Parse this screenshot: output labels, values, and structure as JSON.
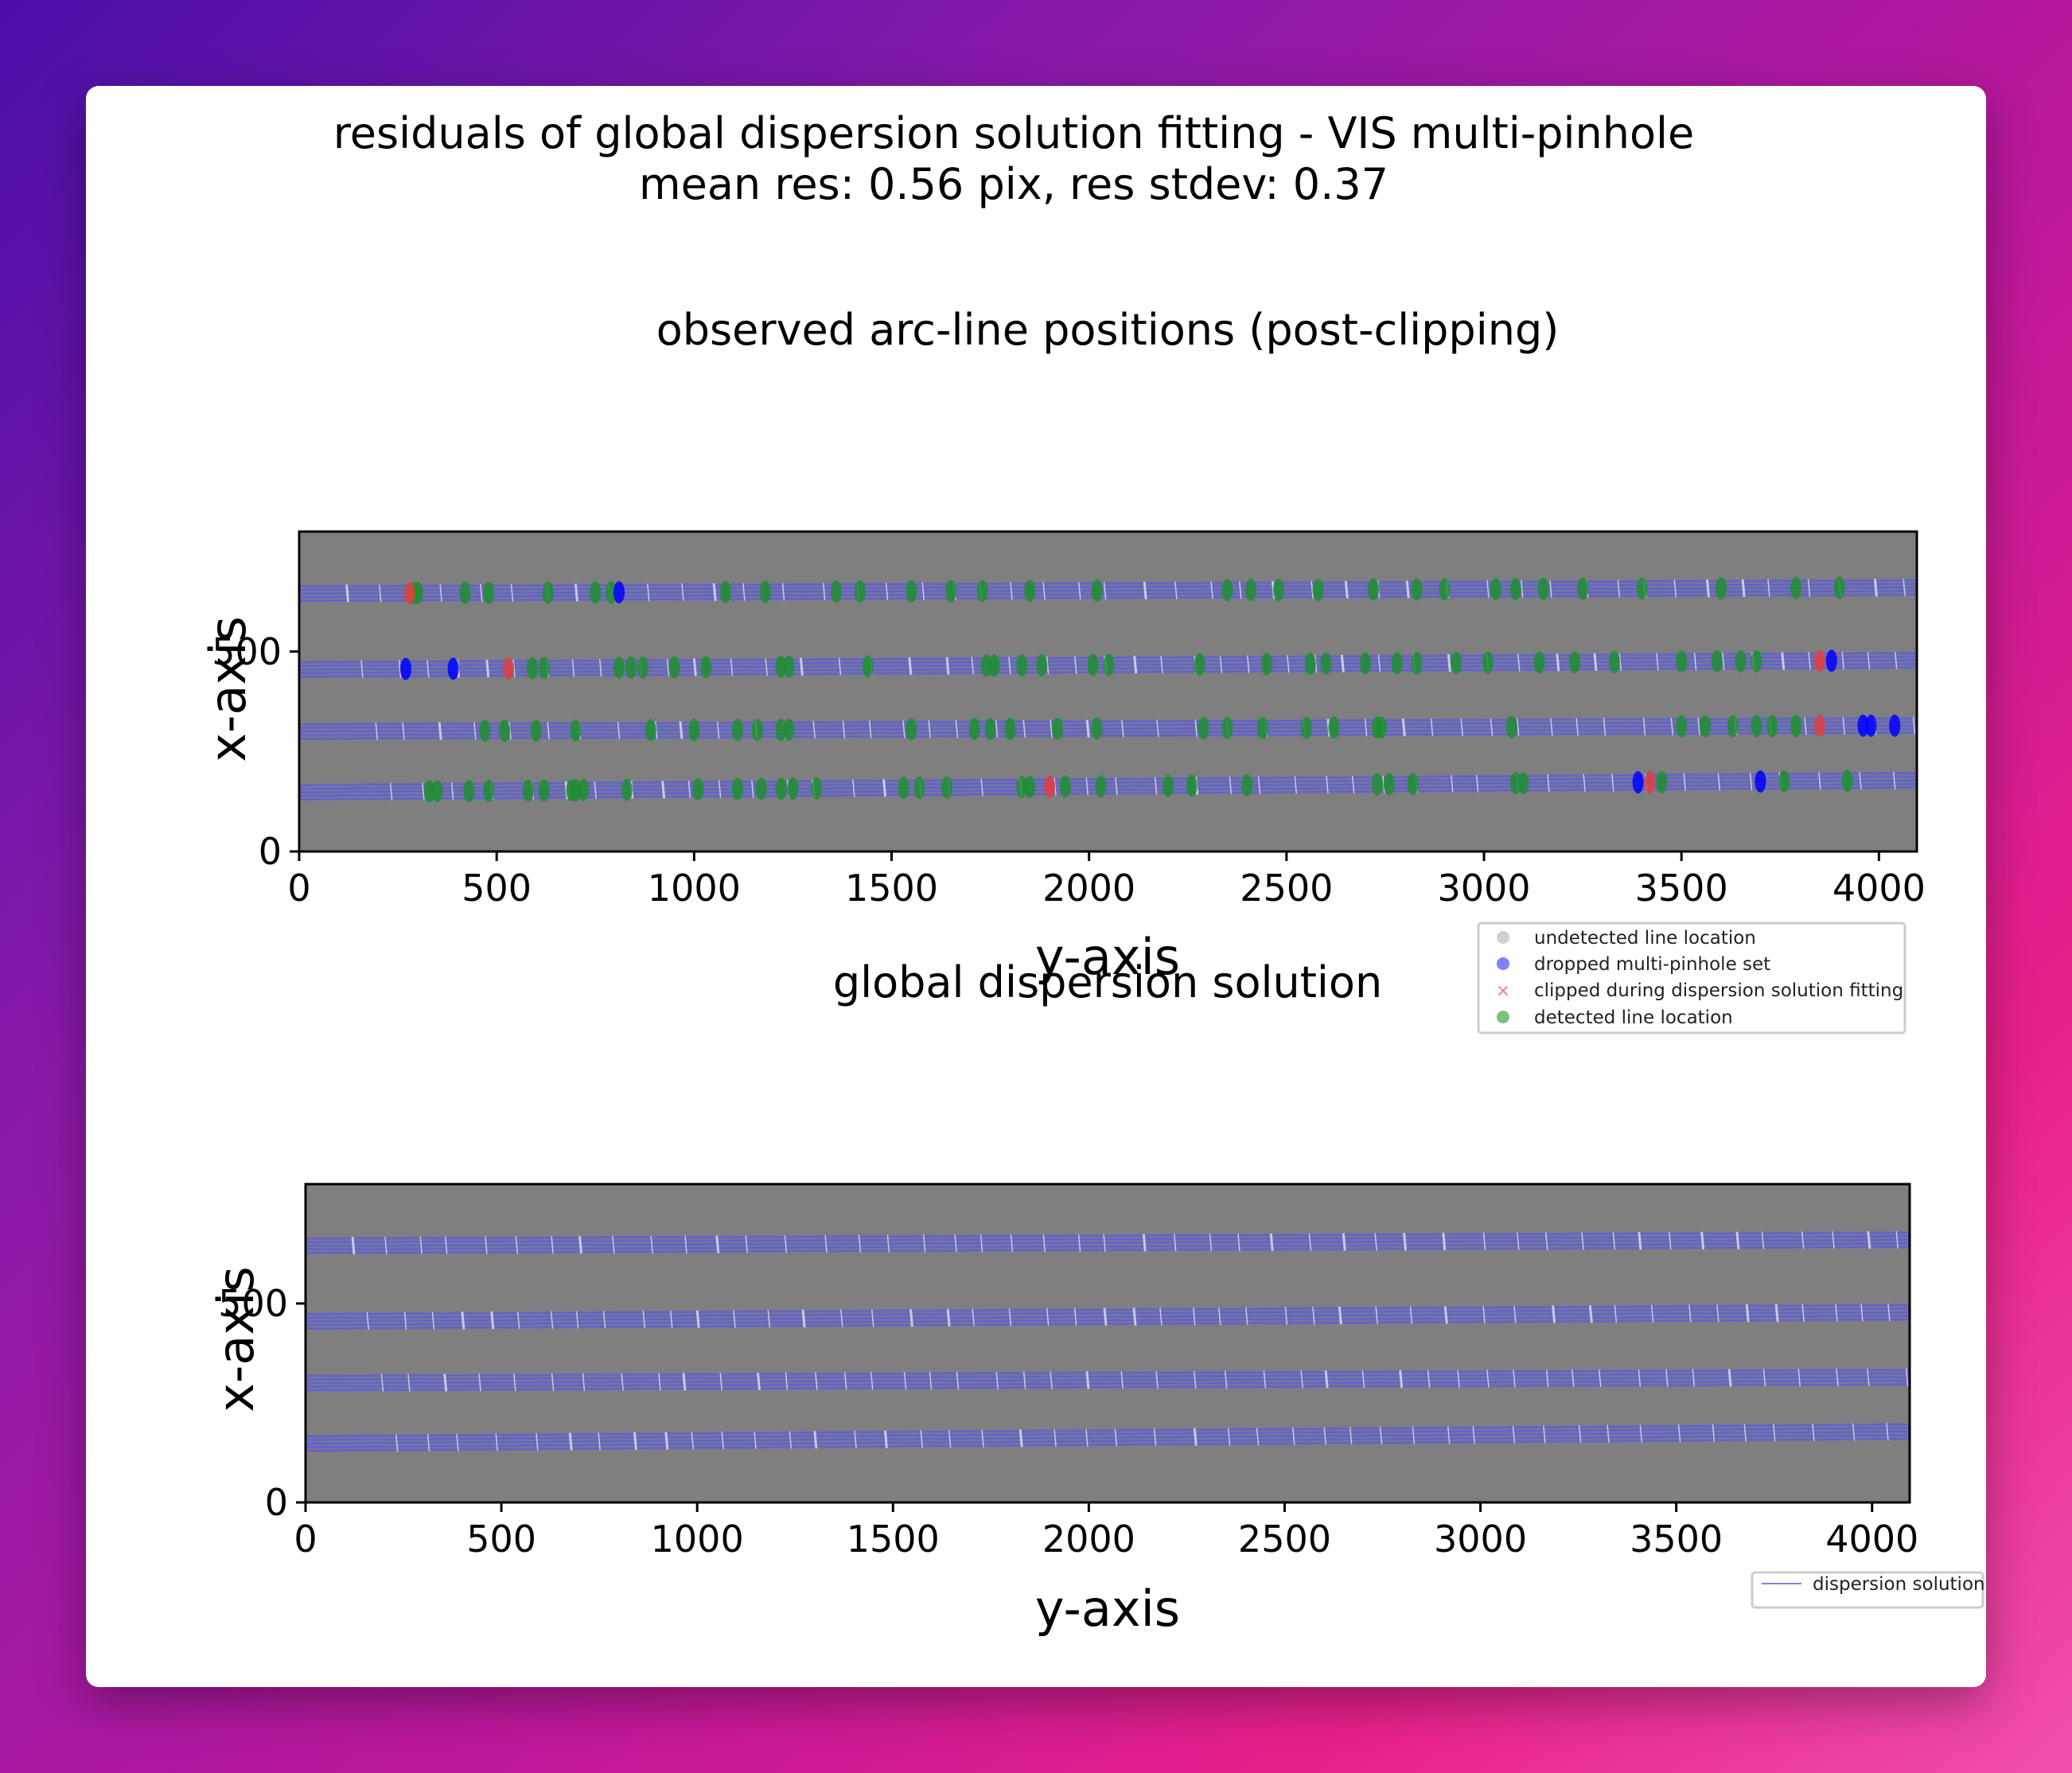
{
  "figure": {
    "suptitle_line1": "residuals of global dispersion solution fitting - VIS multi-pinhole",
    "suptitle_line2": "mean res: 0.56 pix, res stdev: 0.37"
  },
  "colors": {
    "background": "#7f7f7f",
    "order_trace": "#5a5ad8",
    "undetected": "#bfbfbf",
    "dropped": "#0000ff",
    "clipped": "#e04040",
    "detected": "#1f8f2f"
  },
  "chart_data": [
    {
      "type": "scatter",
      "title": "observed arc-line positions (post-clipping)",
      "xlabel": "y-axis",
      "ylabel": "x-axis",
      "xlim": [
        0,
        4096
      ],
      "ylim": [
        0,
        800
      ],
      "xticks": [
        "0",
        "500",
        "1000",
        "1500",
        "2000",
        "2500",
        "3000",
        "3500",
        "4000"
      ],
      "yticks": [
        "0",
        "500"
      ],
      "legend_position": "lower-right-outside",
      "legend": [
        "undetected line location",
        "dropped multi-pinhole set",
        "clipped during dispersion solution fitting",
        "detected line location"
      ],
      "orders": [
        {
          "y0": 645,
          "y1": 660
        },
        {
          "y0": 455,
          "y1": 478
        },
        {
          "y0": 300,
          "y1": 315
        },
        {
          "y0": 148,
          "y1": 178
        }
      ],
      "series": [
        {
          "name": "detected line location",
          "points": [
            [
              290,
              645
            ],
            [
              300,
              645
            ],
            [
              420,
              645
            ],
            [
              480,
              645
            ],
            [
              630,
              645
            ],
            [
              750,
              645
            ],
            [
              790,
              645
            ],
            [
              1080,
              645
            ],
            [
              1180,
              645
            ],
            [
              1360,
              645
            ],
            [
              1420,
              645
            ],
            [
              1550,
              645
            ],
            [
              1650,
              645
            ],
            [
              1730,
              645
            ],
            [
              1850,
              645
            ],
            [
              2020,
              645
            ],
            [
              2350,
              645
            ],
            [
              2410,
              645
            ],
            [
              2480,
              645
            ],
            [
              2580,
              645
            ],
            [
              2720,
              645
            ],
            [
              2830,
              645
            ],
            [
              2900,
              645
            ],
            [
              3030,
              645
            ],
            [
              3080,
              645
            ],
            [
              3150,
              645
            ],
            [
              3250,
              645
            ],
            [
              3400,
              645
            ],
            [
              3600,
              645
            ],
            [
              3790,
              645
            ],
            [
              3900,
              645
            ],
            [
              590,
              455
            ],
            [
              620,
              455
            ],
            [
              810,
              455
            ],
            [
              840,
              455
            ],
            [
              870,
              455
            ],
            [
              950,
              455
            ],
            [
              1030,
              455
            ],
            [
              1220,
              455
            ],
            [
              1240,
              455
            ],
            [
              1440,
              455
            ],
            [
              1740,
              455
            ],
            [
              1760,
              455
            ],
            [
              1830,
              455
            ],
            [
              1880,
              455
            ],
            [
              2010,
              455
            ],
            [
              2050,
              455
            ],
            [
              2280,
              455
            ],
            [
              2450,
              455
            ],
            [
              2560,
              455
            ],
            [
              2600,
              455
            ],
            [
              2700,
              455
            ],
            [
              2780,
              455
            ],
            [
              2830,
              455
            ],
            [
              2930,
              455
            ],
            [
              3010,
              455
            ],
            [
              3140,
              455
            ],
            [
              3230,
              455
            ],
            [
              3330,
              455
            ],
            [
              3500,
              455
            ],
            [
              3590,
              455
            ],
            [
              3650,
              455
            ],
            [
              3690,
              455
            ],
            [
              470,
              300
            ],
            [
              520,
              300
            ],
            [
              600,
              300
            ],
            [
              700,
              300
            ],
            [
              890,
              300
            ],
            [
              1000,
              300
            ],
            [
              1110,
              300
            ],
            [
              1160,
              300
            ],
            [
              1220,
              300
            ],
            [
              1240,
              300
            ],
            [
              1550,
              300
            ],
            [
              1710,
              300
            ],
            [
              1750,
              300
            ],
            [
              1800,
              300
            ],
            [
              1920,
              300
            ],
            [
              2020,
              300
            ],
            [
              2290,
              300
            ],
            [
              2350,
              300
            ],
            [
              2440,
              300
            ],
            [
              2550,
              300
            ],
            [
              2620,
              300
            ],
            [
              2730,
              300
            ],
            [
              2740,
              300
            ],
            [
              3070,
              300
            ],
            [
              3500,
              300
            ],
            [
              3560,
              300
            ],
            [
              3630,
              300
            ],
            [
              3690,
              300
            ],
            [
              3730,
              300
            ],
            [
              3790,
              300
            ],
            [
              330,
              148
            ],
            [
              350,
              148
            ],
            [
              430,
              148
            ],
            [
              480,
              148
            ],
            [
              580,
              148
            ],
            [
              620,
              148
            ],
            [
              690,
              148
            ],
            [
              700,
              148
            ],
            [
              720,
              148
            ],
            [
              830,
              148
            ],
            [
              1010,
              148
            ],
            [
              1110,
              148
            ],
            [
              1170,
              148
            ],
            [
              1220,
              148
            ],
            [
              1250,
              148
            ],
            [
              1310,
              148
            ],
            [
              1530,
              148
            ],
            [
              1570,
              148
            ],
            [
              1640,
              148
            ],
            [
              1830,
              148
            ],
            [
              1850,
              148
            ],
            [
              1940,
              148
            ],
            [
              2030,
              148
            ],
            [
              2200,
              148
            ],
            [
              2260,
              148
            ],
            [
              2400,
              148
            ],
            [
              2730,
              148
            ],
            [
              2760,
              148
            ],
            [
              2820,
              148
            ],
            [
              3080,
              148
            ],
            [
              3100,
              148
            ],
            [
              3450,
              148
            ],
            [
              3760,
              148
            ],
            [
              3920,
              148
            ]
          ]
        },
        {
          "name": "dropped multi-pinhole set",
          "points": [
            [
              810,
              645
            ],
            [
              270,
              455
            ],
            [
              390,
              455
            ],
            [
              3880,
              455
            ],
            [
              3960,
              300
            ],
            [
              3980,
              300
            ],
            [
              4040,
              300
            ],
            [
              3390,
              148
            ],
            [
              3700,
              148
            ]
          ]
        },
        {
          "name": "clipped during dispersion solution fitting",
          "points": [
            [
              280,
              645
            ],
            [
              530,
              455
            ],
            [
              3850,
              455
            ],
            [
              3850,
              300
            ],
            [
              3420,
              148
            ],
            [
              1900,
              148
            ]
          ]
        },
        {
          "name": "undetected line location",
          "points": []
        }
      ]
    },
    {
      "type": "line",
      "title": "global dispersion solution",
      "xlabel": "y-axis",
      "ylabel": "x-axis",
      "xlim": [
        0,
        4096
      ],
      "ylim": [
        0,
        800
      ],
      "xticks": [
        "0",
        "500",
        "1000",
        "1500",
        "2000",
        "2500",
        "3000",
        "3500",
        "4000"
      ],
      "yticks": [
        "0",
        "500"
      ],
      "legend_position": "lower-right-outside",
      "legend": [
        "dispersion solution"
      ],
      "orders": [
        {
          "y0": 645,
          "y1": 660
        },
        {
          "y0": 455,
          "y1": 478
        },
        {
          "y0": 300,
          "y1": 315
        },
        {
          "y0": 148,
          "y1": 178
        }
      ]
    }
  ]
}
